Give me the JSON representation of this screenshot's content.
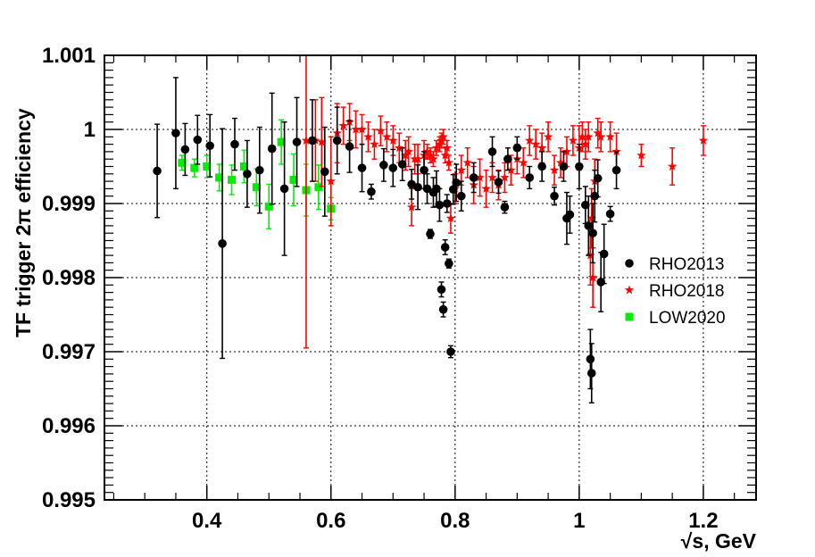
{
  "chart_data": {
    "type": "scatter",
    "xlabel": "√s, GeV",
    "ylabel": "TF trigger 2π efficiency",
    "xlim": [
      0.235,
      1.285
    ],
    "ylim": [
      0.995,
      1.001
    ],
    "grid": true,
    "legend_position": "right",
    "x_ticks": [
      {
        "value": 0.4,
        "label": "0.4"
      },
      {
        "value": 0.6,
        "label": "0.6"
      },
      {
        "value": 0.8,
        "label": "0.8"
      },
      {
        "value": 1.0,
        "label": "1"
      },
      {
        "value": 1.2,
        "label": "1.2"
      }
    ],
    "y_ticks": [
      {
        "value": 0.995,
        "label": "0.995"
      },
      {
        "value": 0.996,
        "label": "0.996"
      },
      {
        "value": 0.997,
        "label": "0.997"
      },
      {
        "value": 0.998,
        "label": "0.998"
      },
      {
        "value": 0.999,
        "label": "0.999"
      },
      {
        "value": 1.0,
        "label": "1"
      },
      {
        "value": 1.001,
        "label": "1.001"
      }
    ],
    "series": [
      {
        "name": "RHO2013",
        "marker": "circle",
        "color": "#000000",
        "points": [
          [
            0.32,
            0.99944,
            0.00063
          ],
          [
            0.35,
            0.99995,
            0.00075
          ],
          [
            0.365,
            0.99973,
            0.00035
          ],
          [
            0.385,
            0.99986,
            0.00033
          ],
          [
            0.405,
            0.99978,
            0.00042
          ],
          [
            0.425,
            0.99846,
            0.00155
          ],
          [
            0.445,
            0.9998,
            0.00035
          ],
          [
            0.465,
            0.9994,
            0.00045
          ],
          [
            0.485,
            0.99945,
            0.00058
          ],
          [
            0.505,
            0.99974,
            0.00075
          ],
          [
            0.525,
            0.9992,
            0.0009
          ],
          [
            0.545,
            0.99983,
            0.0006
          ],
          [
            0.57,
            0.99985,
            0.00055
          ],
          [
            0.59,
            0.99943,
            0.0006
          ],
          [
            0.61,
            0.99985,
            0.00045
          ],
          [
            0.63,
            0.99977,
            0.00035
          ],
          [
            0.65,
            0.99948,
            0.00032
          ],
          [
            0.665,
            0.99916,
            0.0001
          ],
          [
            0.685,
            0.99952,
            0.00022
          ],
          [
            0.7,
            0.99948,
            0.00025
          ],
          [
            0.715,
            0.99953,
            0.00022
          ],
          [
            0.73,
            0.99926,
            0.0002
          ],
          [
            0.74,
            0.99922,
            0.0003
          ],
          [
            0.75,
            0.99945,
            0.00025
          ],
          [
            0.755,
            0.9992,
            0.0002
          ],
          [
            0.76,
            0.99859,
            6e-05
          ],
          [
            0.765,
            0.99915,
            0.0002
          ],
          [
            0.77,
            0.9992,
            0.00024
          ],
          [
            0.775,
            0.99898,
            0.00022
          ],
          [
            0.778,
            0.99784,
            0.0001
          ],
          [
            0.781,
            0.99757,
            0.0001
          ],
          [
            0.784,
            0.99841,
            0.0001
          ],
          [
            0.787,
            0.999,
            0.00012
          ],
          [
            0.79,
            0.99819,
            6e-05
          ],
          [
            0.793,
            0.997,
            8e-05
          ],
          [
            0.797,
            0.99919,
            0.0002
          ],
          [
            0.802,
            0.99928,
            0.00025
          ],
          [
            0.81,
            0.9991,
            0.0002
          ],
          [
            0.83,
            0.99935,
            0.0002
          ],
          [
            0.86,
            0.9997,
            0.0002
          ],
          [
            0.87,
            0.99929,
            0.00015
          ],
          [
            0.88,
            0.99895,
            8e-05
          ],
          [
            0.885,
            0.9996,
            0.00015
          ],
          [
            0.9,
            0.99975,
            0.00015
          ],
          [
            0.92,
            0.99935,
            0.00015
          ],
          [
            0.94,
            0.9995,
            0.0002
          ],
          [
            0.96,
            0.9991,
            0.00012
          ],
          [
            0.975,
            0.9995,
            0.0002
          ],
          [
            0.98,
            0.9988,
            0.00035
          ],
          [
            0.985,
            0.99885,
            0.00025
          ],
          [
            1.0,
            0.9995,
            0.0003
          ],
          [
            1.01,
            0.99898,
            0.00025
          ],
          [
            1.015,
            0.9987,
            0.0004
          ],
          [
            1.018,
            0.9969,
            0.0004
          ],
          [
            1.02,
            0.99671,
            0.0004
          ],
          [
            1.022,
            0.9986,
            0.0004
          ],
          [
            1.025,
            0.9991,
            0.00035
          ],
          [
            1.03,
            0.99934,
            0.00025
          ],
          [
            1.035,
            0.99794,
            0.0004
          ],
          [
            1.04,
            0.99832,
            0.0004
          ],
          [
            1.05,
            0.99886,
            0.0001
          ],
          [
            1.06,
            0.99945,
            0.00025
          ]
        ]
      },
      {
        "name": "RHO2018",
        "marker": "star",
        "color": "#ff0000",
        "points": [
          [
            0.56,
            0.99985,
            0.0028
          ],
          [
            0.575,
            0.99985,
            0.00055
          ],
          [
            0.585,
            0.99983,
            0.0006
          ],
          [
            0.6,
            0.9993,
            0.0006
          ],
          [
            0.61,
            0.99995,
            0.0004
          ],
          [
            0.62,
            1.00005,
            0.00025
          ],
          [
            0.63,
            1.0001,
            0.00025
          ],
          [
            0.64,
            1.0,
            0.00025
          ],
          [
            0.65,
            1.0,
            0.0002
          ],
          [
            0.66,
            0.9999,
            0.0002
          ],
          [
            0.67,
            0.9998,
            0.0002
          ],
          [
            0.68,
            0.99998,
            0.0002
          ],
          [
            0.69,
            0.9999,
            0.0002
          ],
          [
            0.7,
            0.99985,
            0.0002
          ],
          [
            0.71,
            0.99975,
            0.0002
          ],
          [
            0.72,
            0.99965,
            0.0002
          ],
          [
            0.725,
            0.9997,
            0.0002
          ],
          [
            0.73,
            0.99895,
            0.00025
          ],
          [
            0.735,
            0.9996,
            0.0002
          ],
          [
            0.74,
            0.9996,
            0.0002
          ],
          [
            0.75,
            0.99965,
            0.0002
          ],
          [
            0.755,
            0.9997,
            0.0001
          ],
          [
            0.76,
            0.99965,
            0.0001
          ],
          [
            0.765,
            0.9996,
            0.0001
          ],
          [
            0.77,
            0.99975,
            0.0001
          ],
          [
            0.775,
            0.9998,
            0.0001
          ],
          [
            0.778,
            0.99985,
            0.0001
          ],
          [
            0.781,
            0.9999,
            0.0001
          ],
          [
            0.784,
            0.99965,
            0.0001
          ],
          [
            0.787,
            0.99975,
            0.0001
          ],
          [
            0.79,
            0.99955,
            0.0001
          ],
          [
            0.793,
            0.9988,
            0.0002
          ],
          [
            0.8,
            0.9992,
            0.0002
          ],
          [
            0.81,
            0.99945,
            0.0002
          ],
          [
            0.82,
            0.99955,
            0.0002
          ],
          [
            0.83,
            0.99925,
            0.00025
          ],
          [
            0.84,
            0.99935,
            0.00025
          ],
          [
            0.85,
            0.9992,
            0.00025
          ],
          [
            0.86,
            0.99935,
            0.0002
          ],
          [
            0.87,
            0.99925,
            0.0002
          ],
          [
            0.88,
            0.99935,
            0.0002
          ],
          [
            0.89,
            0.99945,
            0.0002
          ],
          [
            0.9,
            0.9996,
            0.0002
          ],
          [
            0.91,
            0.99955,
            0.0002
          ],
          [
            0.92,
            0.99985,
            0.0002
          ],
          [
            0.93,
            0.9998,
            0.0002
          ],
          [
            0.94,
            0.99975,
            0.0002
          ],
          [
            0.95,
            0.9999,
            0.0002
          ],
          [
            0.96,
            0.99945,
            0.0002
          ],
          [
            0.97,
            0.99955,
            0.0002
          ],
          [
            0.98,
            0.9997,
            0.0002
          ],
          [
            0.99,
            0.99985,
            0.0002
          ],
          [
            1.0,
            0.99975,
            0.0003
          ],
          [
            1.005,
            0.9999,
            0.0002
          ],
          [
            1.01,
            0.9998,
            0.0002
          ],
          [
            1.015,
            0.9999,
            0.0002
          ],
          [
            1.018,
            0.9983,
            0.0004
          ],
          [
            1.02,
            0.9988,
            0.0004
          ],
          [
            1.022,
            0.998,
            0.0004
          ],
          [
            1.025,
            0.9993,
            0.0003
          ],
          [
            1.03,
            0.99995,
            0.0002
          ],
          [
            1.035,
            0.9999,
            0.0002
          ],
          [
            1.05,
            0.9999,
            0.0002
          ],
          [
            1.06,
            0.9997,
            0.00025
          ],
          [
            1.1,
            0.99965,
            0.00015
          ],
          [
            1.15,
            0.9995,
            0.00025
          ],
          [
            1.2,
            0.99985,
            0.0002
          ]
        ]
      },
      {
        "name": "LOW2020",
        "marker": "square",
        "color": "#00ee00",
        "points": [
          [
            0.36,
            0.99955,
            0.0001
          ],
          [
            0.38,
            0.99948,
            0.00012
          ],
          [
            0.4,
            0.9995,
            0.00015
          ],
          [
            0.42,
            0.99935,
            0.00018
          ],
          [
            0.44,
            0.99932,
            0.0002
          ],
          [
            0.46,
            0.9995,
            0.00022
          ],
          [
            0.48,
            0.99922,
            0.00025
          ],
          [
            0.5,
            0.99896,
            0.0003
          ],
          [
            0.52,
            0.99983,
            0.0003
          ],
          [
            0.54,
            0.99932,
            0.00035
          ],
          [
            0.56,
            0.99918,
            0.00035
          ],
          [
            0.58,
            0.99922,
            0.0003
          ],
          [
            0.6,
            0.99893,
            0.00015
          ]
        ]
      }
    ]
  }
}
